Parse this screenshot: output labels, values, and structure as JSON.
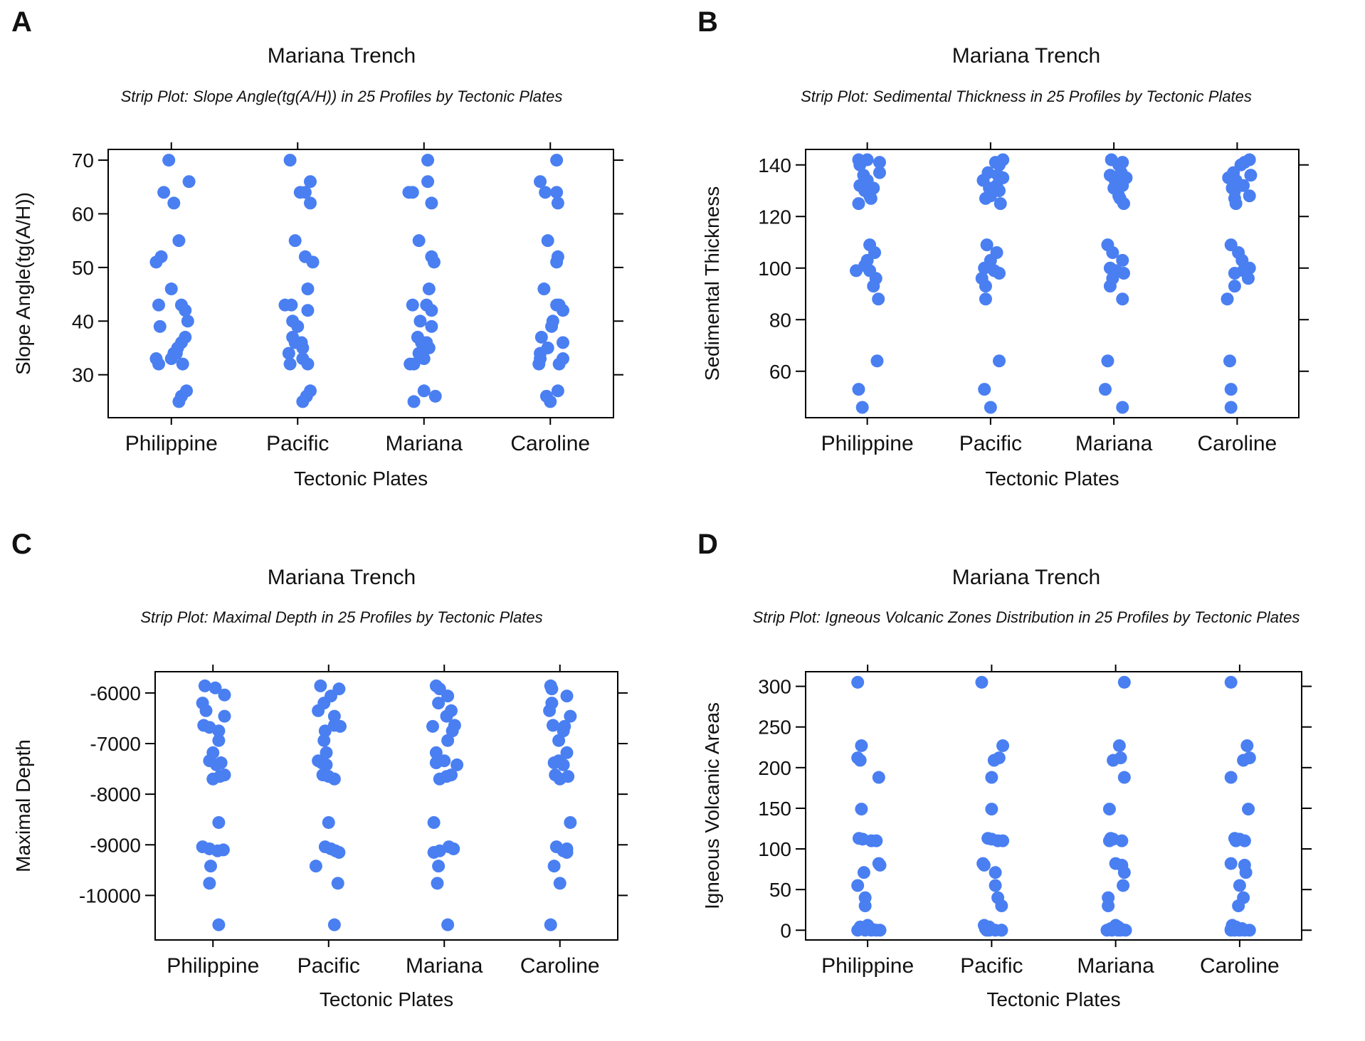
{
  "figure": {
    "dot_color": "#4a7ff2",
    "axis_color": "#000000"
  },
  "chart_data": [
    {
      "panel_label": "A",
      "type": "scatter",
      "title": "Mariana Trench",
      "subtitle": "Strip Plot: Slope Angle(tg(A/H)) in 25 Profiles by Tectonic Plates",
      "xlabel": "Tectonic Plates",
      "ylabel": "Slope Angle(tg(A/H))",
      "categories": [
        "Philippine",
        "Pacific",
        "Mariana",
        "Caroline"
      ],
      "ylim": [
        22,
        72
      ],
      "yticks": [
        30,
        40,
        50,
        60,
        70
      ],
      "ytick_labels": [
        "30",
        "40",
        "50",
        "60",
        "70"
      ],
      "grid": false,
      "series": [
        {
          "values": [
            70,
            64,
            66,
            62,
            55,
            51,
            52,
            46,
            43,
            43,
            42,
            39,
            40,
            37,
            36,
            35,
            34,
            33,
            32,
            32,
            27,
            26,
            25,
            33,
            34
          ],
          "offsets": [
            -0.02,
            -0.06,
            0.14,
            0.02,
            0.06,
            -0.12,
            -0.08,
            0.0,
            -0.1,
            0.08,
            0.11,
            -0.09,
            0.13,
            0.11,
            0.08,
            0.05,
            0.02,
            -0.12,
            -0.1,
            0.09,
            0.12,
            0.08,
            0.06,
            0.0,
            0.04
          ]
        },
        {
          "values": [
            70,
            66,
            64,
            64,
            62,
            55,
            52,
            51,
            46,
            43,
            43,
            42,
            40,
            39,
            37,
            36,
            35,
            34,
            33,
            32,
            32,
            27,
            26,
            25,
            36
          ],
          "offsets": [
            -0.06,
            0.1,
            0.02,
            0.06,
            0.1,
            -0.02,
            0.06,
            0.12,
            0.08,
            -0.1,
            -0.05,
            0.08,
            -0.04,
            0.0,
            -0.04,
            -0.02,
            0.04,
            -0.07,
            0.04,
            -0.06,
            0.08,
            0.1,
            0.07,
            0.04,
            0.03
          ]
        },
        {
          "values": [
            70,
            66,
            64,
            64,
            62,
            55,
            52,
            51,
            46,
            43,
            43,
            42,
            40,
            39,
            37,
            36,
            35,
            34,
            33,
            32,
            32,
            27,
            26,
            25,
            36
          ],
          "offsets": [
            0.03,
            0.03,
            -0.12,
            -0.09,
            0.06,
            -0.04,
            0.06,
            0.08,
            0.04,
            -0.09,
            0.02,
            0.06,
            -0.03,
            0.06,
            -0.05,
            0.02,
            0.04,
            -0.04,
            0.0,
            -0.08,
            -0.11,
            0.0,
            0.09,
            -0.08,
            -0.02
          ]
        },
        {
          "values": [
            70,
            66,
            64,
            64,
            62,
            55,
            52,
            51,
            46,
            43,
            43,
            42,
            40,
            39,
            37,
            36,
            35,
            34,
            33,
            32,
            32,
            27,
            26,
            25,
            33
          ],
          "offsets": [
            0.05,
            -0.08,
            -0.04,
            0.05,
            0.06,
            -0.02,
            0.06,
            0.05,
            -0.05,
            0.05,
            0.07,
            0.1,
            0.02,
            0.01,
            -0.07,
            0.1,
            -0.02,
            -0.08,
            0.1,
            -0.09,
            0.07,
            0.06,
            -0.03,
            0.0,
            -0.08
          ]
        }
      ]
    },
    {
      "panel_label": "B",
      "type": "scatter",
      "title": "Mariana Trench",
      "subtitle": "Strip Plot: Sedimental Thickness in 25 Profiles by Tectonic Plates",
      "xlabel": "Tectonic Plates",
      "ylabel": "Sedimental Thickness",
      "categories": [
        "Philippine",
        "Pacific",
        "Mariana",
        "Caroline"
      ],
      "ylim": [
        42,
        146
      ],
      "yticks": [
        60,
        80,
        100,
        120,
        140
      ],
      "ytick_labels": [
        "60",
        "80",
        "100",
        "120",
        "140"
      ],
      "grid": false,
      "series": [
        {
          "values": [
            142,
            141,
            140,
            137,
            136,
            134,
            132,
            131,
            130,
            128,
            127,
            125,
            109,
            106,
            103,
            101,
            99,
            99,
            96,
            93,
            88,
            64,
            53,
            46,
            142
          ],
          "offsets": [
            -0.07,
            0.1,
            -0.06,
            0.1,
            -0.03,
            0.0,
            -0.06,
            0.05,
            -0.02,
            0.02,
            0.03,
            -0.07,
            0.02,
            0.06,
            0.0,
            -0.02,
            -0.09,
            0.02,
            0.07,
            0.05,
            0.09,
            0.08,
            -0.07,
            -0.04,
            0.0
          ]
        },
        {
          "values": [
            142,
            141,
            140,
            137,
            136,
            135,
            134,
            132,
            131,
            130,
            128,
            127,
            125,
            109,
            106,
            103,
            100,
            99,
            98,
            96,
            93,
            88,
            64,
            53,
            46
          ],
          "offsets": [
            0.1,
            0.04,
            0.07,
            -0.02,
            0.06,
            0.1,
            -0.06,
            0.05,
            -0.01,
            0.07,
            0.0,
            -0.04,
            0.08,
            -0.03,
            0.05,
            0.0,
            -0.05,
            0.03,
            0.07,
            -0.07,
            -0.04,
            -0.04,
            0.07,
            -0.05,
            0.0
          ]
        },
        {
          "values": [
            142,
            141,
            140,
            137,
            136,
            135,
            134,
            132,
            131,
            130,
            128,
            127,
            125,
            109,
            106,
            103,
            100,
            99,
            98,
            96,
            93,
            88,
            64,
            53,
            46
          ],
          "offsets": [
            -0.02,
            0.07,
            0.04,
            0.06,
            -0.03,
            0.1,
            0.01,
            0.07,
            0.0,
            0.03,
            0.04,
            0.05,
            0.08,
            -0.05,
            -0.01,
            0.07,
            -0.03,
            0.02,
            0.08,
            -0.01,
            -0.03,
            0.07,
            -0.05,
            -0.07,
            0.07
          ]
        },
        {
          "values": [
            142,
            141,
            140,
            137,
            136,
            135,
            134,
            132,
            131,
            130,
            128,
            127,
            125,
            109,
            106,
            103,
            100,
            99,
            98,
            96,
            93,
            88,
            64,
            53,
            46
          ],
          "offsets": [
            0.1,
            0.06,
            0.03,
            -0.03,
            0.11,
            -0.07,
            -0.01,
            0.05,
            -0.04,
            -0.02,
            0.1,
            -0.02,
            -0.01,
            -0.05,
            0.01,
            0.04,
            0.1,
            0.05,
            -0.02,
            0.09,
            -0.02,
            -0.08,
            -0.06,
            -0.05,
            -0.05
          ]
        }
      ]
    },
    {
      "panel_label": "C",
      "type": "scatter",
      "title": "Mariana Trench",
      "subtitle": "Strip Plot: Maximal Depth in 25 Profiles by Tectonic Plates",
      "xlabel": "Tectonic Plates",
      "ylabel": "Maximal Depth",
      "categories": [
        "Philippine",
        "Pacific",
        "Mariana",
        "Caroline"
      ],
      "ylim": [
        -10880,
        -5580
      ],
      "yticks": [
        -10000,
        -9000,
        -8000,
        -7000,
        -6000
      ],
      "ytick_labels": [
        "-10000",
        "-9000",
        "-8000",
        "-7000",
        "-6000"
      ],
      "grid": false,
      "series": [
        {
          "values": [
            -5860,
            -5900,
            -6040,
            -6200,
            -6350,
            -6460,
            -6640,
            -6680,
            -6750,
            -6940,
            -7180,
            -7340,
            -7380,
            -7420,
            -7620,
            -7650,
            -7700,
            -8560,
            -9040,
            -9080,
            -9120,
            -9100,
            -9420,
            -9760,
            -10580
          ],
          "offsets": [
            -0.07,
            0.02,
            0.1,
            -0.09,
            -0.06,
            0.1,
            -0.08,
            -0.03,
            0.05,
            0.05,
            0.0,
            -0.03,
            0.07,
            0.03,
            0.1,
            0.06,
            0.0,
            0.05,
            -0.09,
            -0.03,
            0.04,
            0.09,
            -0.02,
            -0.03,
            0.05
          ]
        },
        {
          "values": [
            -5860,
            -5920,
            -6060,
            -6200,
            -6350,
            -6460,
            -6640,
            -6660,
            -6750,
            -6940,
            -7180,
            -7340,
            -7380,
            -7420,
            -7620,
            -7650,
            -7700,
            -8560,
            -9040,
            -9080,
            -9120,
            -9150,
            -9420,
            -9760,
            -10580
          ],
          "offsets": [
            -0.07,
            0.09,
            0.02,
            -0.04,
            -0.09,
            0.05,
            0.05,
            0.1,
            -0.03,
            -0.04,
            -0.02,
            -0.09,
            -0.06,
            -0.02,
            -0.05,
            0.0,
            0.05,
            0.0,
            -0.03,
            0.02,
            0.06,
            0.09,
            -0.11,
            0.08,
            0.05
          ]
        },
        {
          "values": [
            -5860,
            -5920,
            -6060,
            -6200,
            -6350,
            -6460,
            -6640,
            -6660,
            -6750,
            -6940,
            -7180,
            -7340,
            -7380,
            -7420,
            -7620,
            -7650,
            -7700,
            -8560,
            -9040,
            -9080,
            -9120,
            -9150,
            -9420,
            -9760,
            -10580
          ],
          "offsets": [
            -0.07,
            -0.04,
            0.03,
            -0.05,
            0.06,
            0.02,
            0.09,
            -0.1,
            0.07,
            0.03,
            -0.07,
            0.0,
            -0.07,
            0.11,
            0.06,
            0.02,
            -0.04,
            -0.09,
            0.04,
            0.08,
            -0.04,
            -0.09,
            -0.05,
            -0.06,
            0.03
          ]
        },
        {
          "values": [
            -5860,
            -5920,
            -6060,
            -6200,
            -6350,
            -6460,
            -6640,
            -6660,
            -6750,
            -6940,
            -7180,
            -7340,
            -7380,
            -7420,
            -7620,
            -7650,
            -7700,
            -8560,
            -9040,
            -9080,
            -9120,
            -9150,
            -9420,
            -9760,
            -10580
          ],
          "offsets": [
            -0.08,
            -0.07,
            0.06,
            -0.07,
            -0.09,
            0.09,
            -0.06,
            0.04,
            0.03,
            -0.01,
            0.06,
            -0.01,
            -0.05,
            0.03,
            -0.04,
            0.07,
            0.0,
            0.09,
            -0.03,
            0.06,
            0.03,
            0.06,
            -0.05,
            0.0,
            -0.08
          ]
        }
      ]
    },
    {
      "panel_label": "D",
      "type": "scatter",
      "title": "Mariana Trench",
      "subtitle": "Strip Plot: Igneous Volcanic Zones Distribution in 25 Profiles by Tectonic Plates",
      "xlabel": "Tectonic Plates",
      "ylabel": "Igneous Volcanic Areas",
      "categories": [
        "Philippine",
        "Pacific",
        "Mariana",
        "Caroline"
      ],
      "ylim": [
        -12,
        318
      ],
      "yticks": [
        0,
        50,
        100,
        150,
        200,
        250,
        300
      ],
      "ytick_labels": [
        "0",
        "50",
        "100",
        "150",
        "200",
        "250",
        "300"
      ],
      "grid": false,
      "series": [
        {
          "values": [
            305,
            227,
            212,
            209,
            188,
            149,
            113,
            112,
            110,
            110,
            82,
            80,
            71,
            55,
            40,
            30,
            6,
            4,
            2,
            1,
            0,
            0,
            0,
            0,
            0
          ],
          "offsets": [
            -0.08,
            -0.05,
            -0.08,
            -0.06,
            0.09,
            -0.05,
            -0.07,
            -0.04,
            0.03,
            0.07,
            0.09,
            0.1,
            -0.03,
            -0.08,
            -0.02,
            -0.02,
            0.0,
            -0.06,
            -0.04,
            0.04,
            -0.08,
            -0.02,
            0.03,
            0.1,
            0.07
          ]
        },
        {
          "values": [
            305,
            227,
            212,
            209,
            188,
            149,
            113,
            112,
            110,
            110,
            82,
            80,
            71,
            55,
            40,
            30,
            6,
            4,
            2,
            1,
            0,
            0,
            0,
            0,
            0
          ],
          "offsets": [
            -0.08,
            0.09,
            0.06,
            0.02,
            0.0,
            0.0,
            -0.03,
            0.0,
            0.05,
            0.09,
            -0.07,
            -0.06,
            0.03,
            0.03,
            0.05,
            0.08,
            -0.06,
            -0.02,
            -0.05,
            0.0,
            -0.04,
            -0.02,
            0.03,
            0.08,
            0.08
          ]
        },
        {
          "values": [
            305,
            227,
            212,
            209,
            188,
            149,
            113,
            112,
            110,
            110,
            82,
            80,
            71,
            55,
            40,
            30,
            6,
            4,
            2,
            1,
            0,
            0,
            0,
            0,
            0
          ],
          "offsets": [
            0.07,
            0.03,
            0.04,
            -0.02,
            0.07,
            -0.05,
            -0.04,
            -0.02,
            -0.05,
            0.05,
            0.0,
            0.05,
            0.07,
            0.06,
            -0.06,
            -0.06,
            0.0,
            0.02,
            -0.04,
            0.05,
            -0.07,
            0.08,
            -0.03,
            0.02,
            0.04
          ]
        },
        {
          "values": [
            305,
            227,
            212,
            209,
            188,
            149,
            113,
            112,
            110,
            110,
            82,
            80,
            71,
            55,
            40,
            30,
            6,
            4,
            2,
            1,
            0,
            0,
            0,
            0,
            0
          ],
          "offsets": [
            -0.07,
            0.06,
            0.08,
            0.03,
            -0.07,
            0.07,
            -0.04,
            0.0,
            -0.03,
            0.04,
            -0.07,
            0.04,
            0.05,
            0.0,
            0.03,
            -0.01,
            -0.06,
            -0.03,
            0.02,
            -0.07,
            0.08,
            0.0,
            -0.04,
            0.04,
            -0.07
          ]
        }
      ]
    }
  ]
}
